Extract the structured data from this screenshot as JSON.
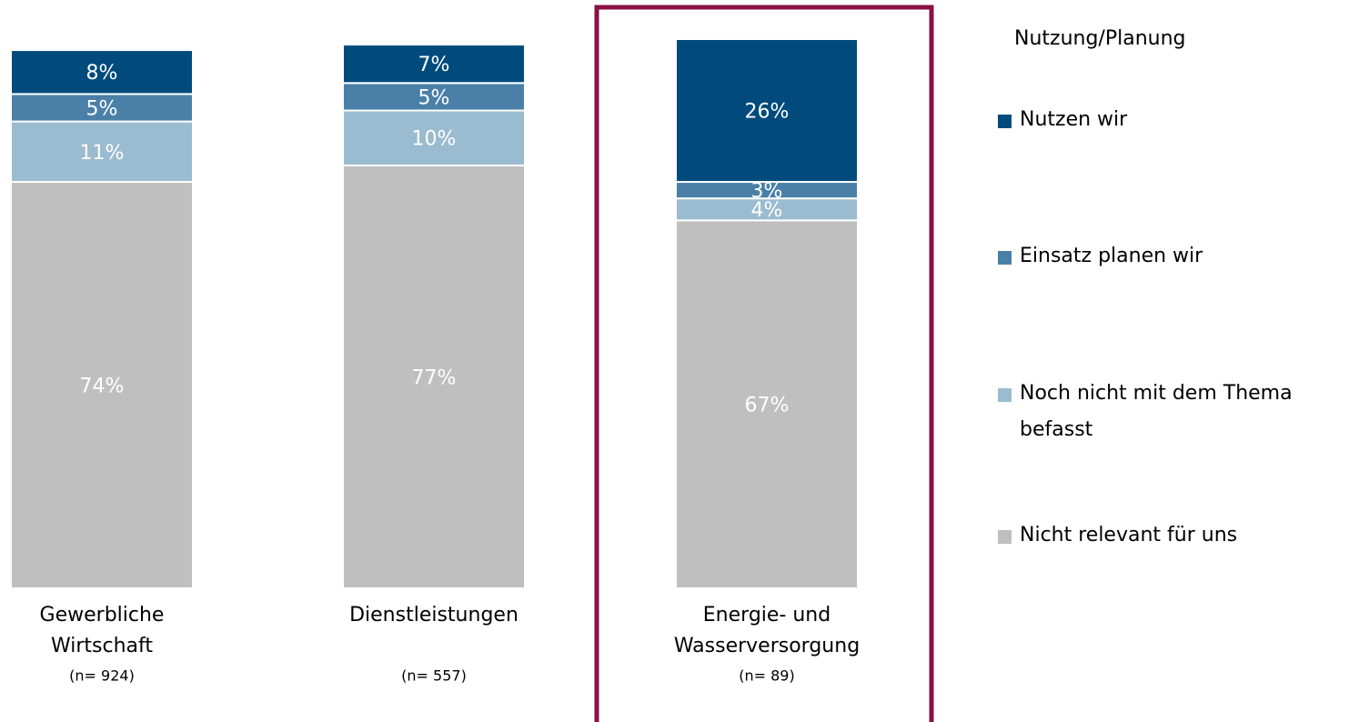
{
  "chart_data": {
    "type": "stacked_bar",
    "categories": [
      [
        "Gewerbliche",
        "Wirtschaft"
      ],
      [
        "Dienstleistungen"
      ],
      [
        "Energie- und",
        "Wasserversorgung"
      ]
    ],
    "sample_sizes": [
      "(n= 924)",
      "(n= 557)",
      "(n= 89)"
    ],
    "legend_title": "Nutzung/Planung",
    "ylim": [
      0,
      100
    ],
    "series": [
      {
        "name": "Nutzen wir",
        "color": "#004b7c",
        "values": [
          8,
          7,
          26
        ],
        "value_labels": [
          "8%",
          "7%",
          "26%"
        ]
      },
      {
        "name": "Einsatz planen wir",
        "color": "#4a80a8",
        "values": [
          5,
          5,
          3
        ],
        "value_labels": [
          "5%",
          "5%",
          "3%"
        ]
      },
      {
        "name": "Noch nicht mit dem Thema befasst",
        "color": "#9bbbd0",
        "values": [
          11,
          10,
          4
        ],
        "value_labels": [
          "11%",
          "10%",
          "4%"
        ]
      },
      {
        "name": "Nicht relevant für uns",
        "color": "#bfbfbf",
        "values": [
          74,
          77,
          67
        ],
        "value_labels": [
          "74%",
          "77%",
          "67%"
        ]
      }
    ]
  }
}
